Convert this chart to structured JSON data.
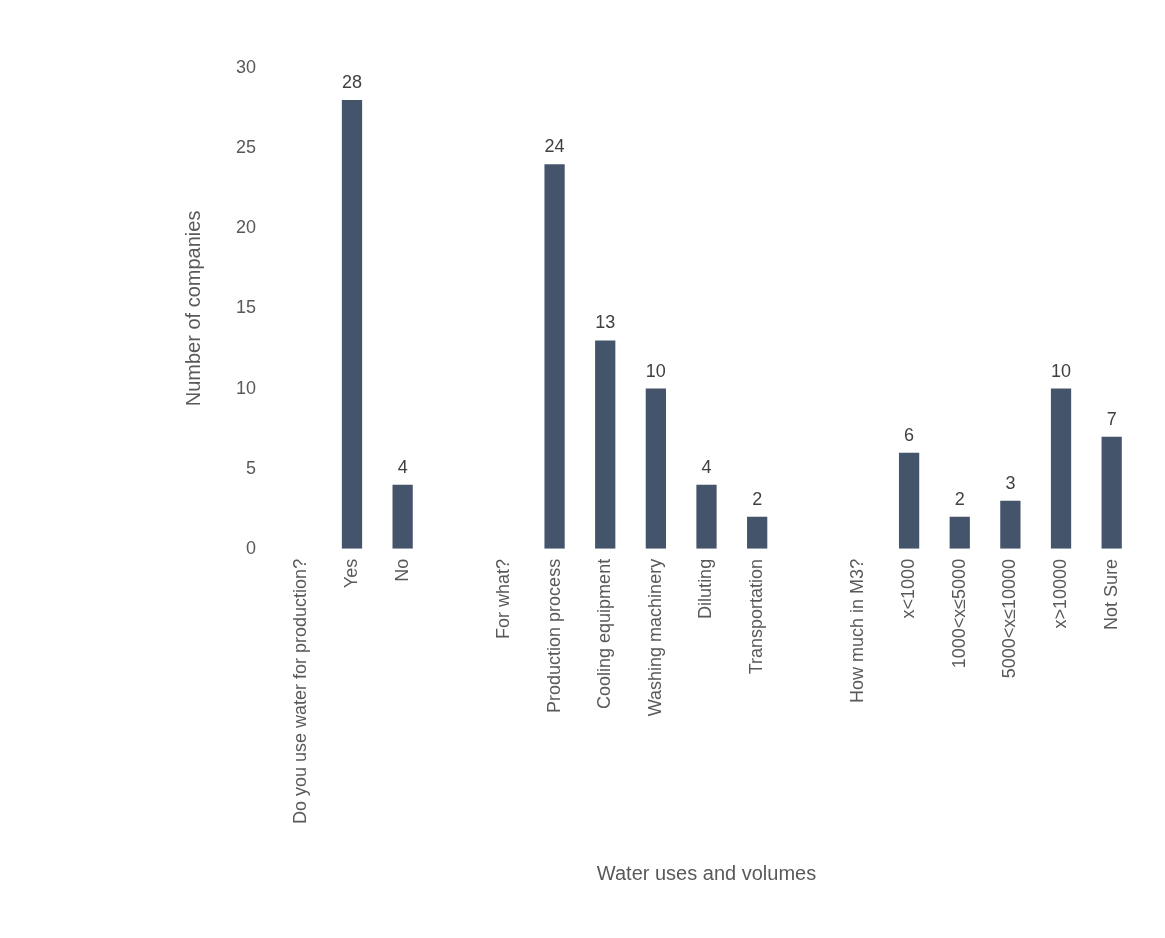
{
  "chart_data": {
    "type": "bar",
    "xlabel": "Water uses and volumes",
    "ylabel": "Number of companies",
    "categories": [
      "Do you use water for production?",
      "Yes",
      "No",
      null,
      "For what?",
      "Production process",
      "Cooling equipment",
      "Washing machinery",
      "Diluting",
      "Transportation",
      null,
      "How much in M3?",
      "x<1000",
      "1000<x≤5000",
      "5000<x≤10000",
      "x>10000",
      "Not Sure"
    ],
    "values": [
      null,
      28,
      4,
      null,
      null,
      24,
      13,
      10,
      4,
      2,
      null,
      null,
      6,
      2,
      3,
      10,
      7
    ],
    "color": "#44546a",
    "ylim": [
      0,
      30
    ],
    "yticks": [
      0,
      5,
      10,
      15,
      20,
      25,
      30
    ],
    "grid": false,
    "legend": false,
    "data_labels": true
  }
}
